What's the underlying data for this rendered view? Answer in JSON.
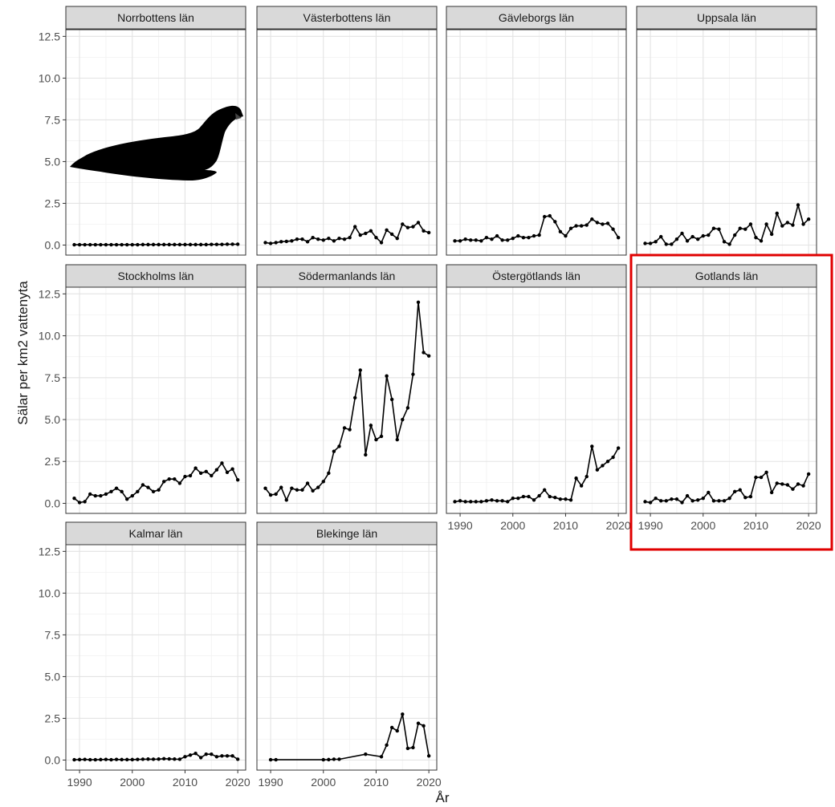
{
  "chart_data": {
    "type": "line",
    "facet_wrap": true,
    "xlabel": "År",
    "ylabel": "Sälar per km2 vattenyta",
    "ylim": [
      0,
      12.5
    ],
    "xlim": [
      1989,
      2020
    ],
    "y_ticks": [
      "0.0",
      "2.5",
      "5.0",
      "7.5",
      "10.0",
      "12.5"
    ],
    "x_ticks": [
      "1990",
      "2000",
      "2010",
      "2020"
    ],
    "x_tick_values": [
      1990,
      2000,
      2010,
      2020
    ],
    "y_tick_values": [
      0,
      2.5,
      5,
      7.5,
      10,
      12.5
    ],
    "grid": true,
    "highlighted_panel": "Gotlands län",
    "panels": [
      {
        "name": "Norrbottens län",
        "x": [
          1989,
          1990,
          1991,
          1992,
          1993,
          1994,
          1995,
          1996,
          1997,
          1998,
          1999,
          2000,
          2001,
          2002,
          2003,
          2004,
          2005,
          2006,
          2007,
          2008,
          2009,
          2010,
          2011,
          2012,
          2013,
          2014,
          2015,
          2016,
          2017,
          2018,
          2019,
          2020
        ],
        "y": [
          0.02,
          0.02,
          0.02,
          0.02,
          0.02,
          0.02,
          0.02,
          0.02,
          0.02,
          0.02,
          0.02,
          0.02,
          0.02,
          0.03,
          0.03,
          0.03,
          0.03,
          0.03,
          0.03,
          0.03,
          0.03,
          0.03,
          0.03,
          0.03,
          0.03,
          0.03,
          0.04,
          0.04,
          0.04,
          0.05,
          0.05,
          0.05
        ]
      },
      {
        "name": "Västerbottens län",
        "x": [
          1989,
          1990,
          1991,
          1992,
          1993,
          1994,
          1995,
          1996,
          1997,
          1998,
          1999,
          2000,
          2001,
          2002,
          2003,
          2004,
          2005,
          2006,
          2007,
          2008,
          2009,
          2010,
          2011,
          2012,
          2013,
          2014,
          2015,
          2016,
          2017,
          2018,
          2019,
          2020
        ],
        "y": [
          0.15,
          0.1,
          0.15,
          0.2,
          0.22,
          0.25,
          0.35,
          0.35,
          0.2,
          0.45,
          0.35,
          0.3,
          0.4,
          0.25,
          0.4,
          0.35,
          0.45,
          1.1,
          0.6,
          0.7,
          0.85,
          0.45,
          0.15,
          0.9,
          0.65,
          0.4,
          1.25,
          1.05,
          1.1,
          1.35,
          0.85,
          0.75
        ]
      },
      {
        "name": "Gävleborgs län",
        "x": [
          1989,
          1990,
          1991,
          1992,
          1993,
          1994,
          1995,
          1996,
          1997,
          1998,
          1999,
          2000,
          2001,
          2002,
          2003,
          2004,
          2005,
          2006,
          2007,
          2008,
          2009,
          2010,
          2011,
          2012,
          2013,
          2014,
          2015,
          2016,
          2017,
          2018,
          2019,
          2020
        ],
        "y": [
          0.25,
          0.25,
          0.35,
          0.3,
          0.3,
          0.25,
          0.45,
          0.35,
          0.55,
          0.3,
          0.3,
          0.4,
          0.55,
          0.45,
          0.45,
          0.55,
          0.6,
          1.7,
          1.75,
          1.4,
          0.8,
          0.55,
          1.0,
          1.15,
          1.15,
          1.2,
          1.55,
          1.35,
          1.25,
          1.3,
          0.95,
          0.45
        ]
      },
      {
        "name": "Uppsala län",
        "x": [
          1989,
          1990,
          1991,
          1992,
          1993,
          1994,
          1995,
          1996,
          1997,
          1998,
          1999,
          2000,
          2001,
          2002,
          2003,
          2004,
          2005,
          2006,
          2007,
          2008,
          2009,
          2010,
          2011,
          2012,
          2013,
          2014,
          2015,
          2016,
          2017,
          2018,
          2019,
          2020
        ],
        "y": [
          0.1,
          0.1,
          0.2,
          0.5,
          0.05,
          0.05,
          0.35,
          0.7,
          0.25,
          0.5,
          0.35,
          0.55,
          0.6,
          1.0,
          0.95,
          0.2,
          0.05,
          0.6,
          1.0,
          0.95,
          1.25,
          0.45,
          0.25,
          1.25,
          0.65,
          1.9,
          1.15,
          1.35,
          1.2,
          2.4,
          1.25,
          1.55
        ]
      },
      {
        "name": "Stockholms län",
        "x": [
          1989,
          1990,
          1991,
          1992,
          1993,
          1994,
          1995,
          1996,
          1997,
          1998,
          1999,
          2000,
          2001,
          2002,
          2003,
          2004,
          2005,
          2006,
          2007,
          2008,
          2009,
          2010,
          2011,
          2012,
          2013,
          2014,
          2015,
          2016,
          2017,
          2018,
          2019,
          2020
        ],
        "y": [
          0.3,
          0.05,
          0.1,
          0.55,
          0.45,
          0.45,
          0.55,
          0.7,
          0.9,
          0.7,
          0.25,
          0.45,
          0.7,
          1.1,
          0.95,
          0.7,
          0.8,
          1.3,
          1.45,
          1.45,
          1.2,
          1.6,
          1.65,
          2.1,
          1.8,
          1.9,
          1.65,
          2.0,
          2.4,
          1.85,
          2.05,
          1.4
        ]
      },
      {
        "name": "Södermanlands län",
        "x": [
          1989,
          1990,
          1991,
          1992,
          1993,
          1994,
          1995,
          1996,
          1997,
          1998,
          1999,
          2000,
          2001,
          2002,
          2003,
          2004,
          2005,
          2006,
          2007,
          2008,
          2009,
          2010,
          2011,
          2012,
          2013,
          2014,
          2015,
          2016,
          2017,
          2018,
          2019,
          2020
        ],
        "y": [
          0.9,
          0.5,
          0.55,
          0.95,
          0.2,
          0.9,
          0.8,
          0.8,
          1.2,
          0.75,
          0.95,
          1.3,
          1.8,
          3.1,
          3.4,
          4.5,
          4.4,
          6.3,
          7.95,
          2.9,
          4.65,
          3.8,
          4.0,
          7.6,
          6.2,
          3.8,
          5.0,
          5.7,
          7.7,
          12.0,
          9.0,
          8.8
        ]
      },
      {
        "name": "Östergötlands län",
        "x": [
          1989,
          1990,
          1991,
          1992,
          1993,
          1994,
          1995,
          1996,
          1997,
          1998,
          1999,
          2000,
          2001,
          2002,
          2003,
          2004,
          2005,
          2006,
          2007,
          2008,
          2009,
          2010,
          2011,
          2012,
          2013,
          2014,
          2015,
          2016,
          2017,
          2018,
          2019,
          2020
        ],
        "y": [
          0.1,
          0.15,
          0.1,
          0.1,
          0.1,
          0.1,
          0.15,
          0.2,
          0.15,
          0.15,
          0.1,
          0.3,
          0.3,
          0.4,
          0.4,
          0.2,
          0.45,
          0.8,
          0.4,
          0.35,
          0.25,
          0.25,
          0.2,
          1.5,
          1.05,
          1.6,
          3.4,
          2.0,
          2.25,
          2.5,
          2.75,
          3.3
        ]
      },
      {
        "name": "Gotlands län",
        "x": [
          1989,
          1990,
          1991,
          1992,
          1993,
          1994,
          1995,
          1996,
          1997,
          1998,
          1999,
          2000,
          2001,
          2002,
          2003,
          2004,
          2005,
          2006,
          2007,
          2008,
          2009,
          2010,
          2011,
          2012,
          2013,
          2014,
          2015,
          2016,
          2017,
          2018,
          2019,
          2020
        ],
        "y": [
          0.1,
          0.05,
          0.3,
          0.15,
          0.15,
          0.25,
          0.25,
          0.05,
          0.45,
          0.15,
          0.2,
          0.3,
          0.65,
          0.15,
          0.15,
          0.15,
          0.3,
          0.7,
          0.8,
          0.35,
          0.4,
          1.55,
          1.55,
          1.85,
          0.65,
          1.2,
          1.15,
          1.1,
          0.85,
          1.15,
          1.05,
          1.75
        ]
      },
      {
        "name": "Kalmar län",
        "x": [
          1989,
          1990,
          1991,
          1992,
          1993,
          1994,
          1995,
          1996,
          1997,
          1998,
          1999,
          2000,
          2001,
          2002,
          2003,
          2004,
          2005,
          2006,
          2007,
          2008,
          2009,
          2010,
          2011,
          2012,
          2013,
          2014,
          2015,
          2016,
          2017,
          2018,
          2019,
          2020
        ],
        "y": [
          0.02,
          0.03,
          0.04,
          0.02,
          0.02,
          0.03,
          0.04,
          0.02,
          0.04,
          0.03,
          0.03,
          0.03,
          0.04,
          0.05,
          0.06,
          0.05,
          0.06,
          0.08,
          0.07,
          0.06,
          0.05,
          0.2,
          0.3,
          0.4,
          0.15,
          0.35,
          0.35,
          0.2,
          0.25,
          0.25,
          0.25,
          0.05
        ]
      },
      {
        "name": "Blekinge län",
        "x": [
          1990,
          1991,
          2000,
          2001,
          2002,
          2003,
          2008,
          2011,
          2012,
          2013,
          2014,
          2015,
          2016,
          2017,
          2018,
          2019,
          2020
        ],
        "y": [
          0.02,
          0.02,
          0.02,
          0.03,
          0.05,
          0.05,
          0.35,
          0.2,
          0.9,
          1.95,
          1.75,
          2.75,
          0.7,
          0.75,
          2.2,
          2.05,
          0.25
        ]
      }
    ]
  }
}
